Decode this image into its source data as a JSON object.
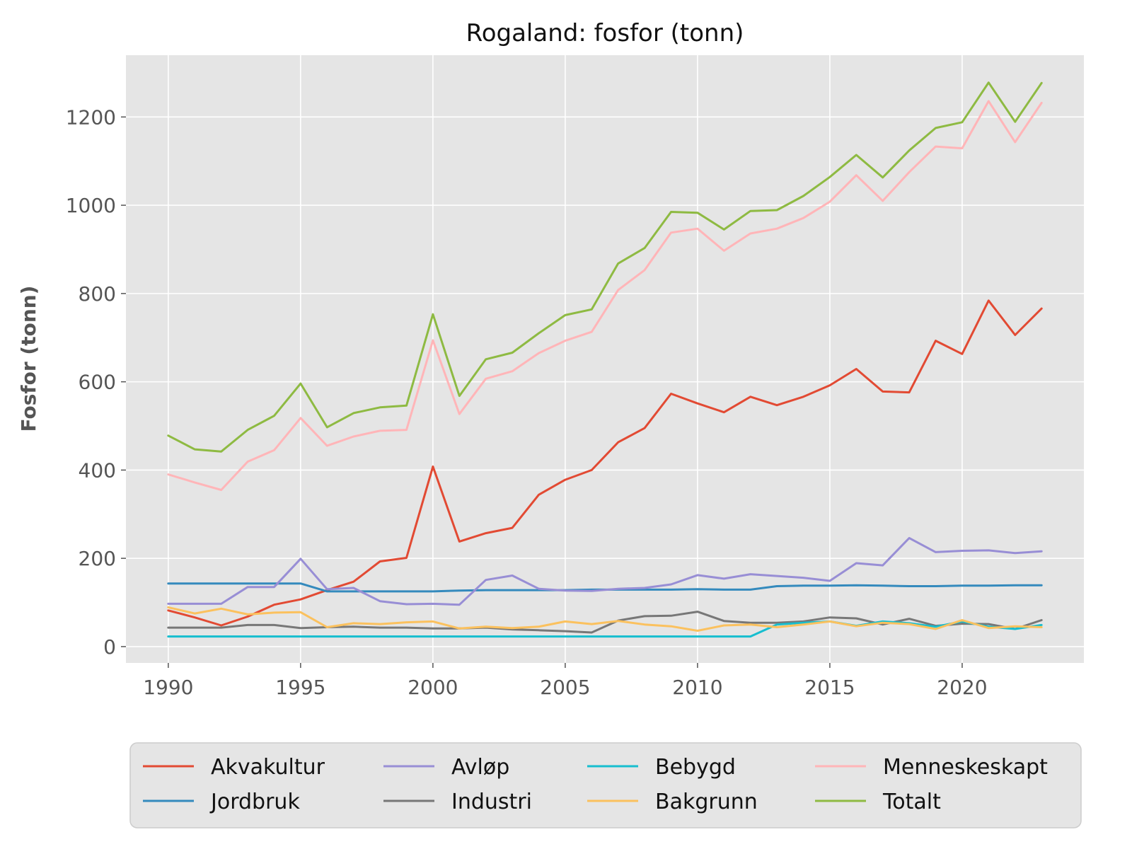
{
  "chart_data": {
    "type": "line",
    "title": "Rogaland: fosfor (tonn)",
    "xlabel": "",
    "ylabel": "Fosfor (tonn)",
    "xlim": [
      1988.4,
      2024.6
    ],
    "ylim": [
      -37,
      1340
    ],
    "xticks": [
      1990,
      1995,
      2000,
      2005,
      2010,
      2015,
      2020
    ],
    "yticks": [
      0,
      200,
      400,
      600,
      800,
      1000,
      1200
    ],
    "grid": true,
    "legend_position": "bottom-center",
    "x": [
      1990,
      1991,
      1992,
      1993,
      1994,
      1995,
      1996,
      1997,
      1998,
      1999,
      2000,
      2001,
      2002,
      2003,
      2004,
      2005,
      2006,
      2007,
      2008,
      2009,
      2010,
      2011,
      2012,
      2013,
      2014,
      2015,
      2016,
      2017,
      2018,
      2019,
      2020,
      2021,
      2022,
      2023
    ],
    "series": [
      {
        "name": "Akvakultur",
        "color": "#e24a33",
        "values": [
          82,
          66,
          48,
          68,
          95,
          107,
          128,
          147,
          193,
          201,
          408,
          238,
          257,
          269,
          344,
          378,
          400,
          463,
          495,
          573,
          551,
          531,
          566,
          547,
          566,
          592,
          629,
          578,
          576,
          693,
          663,
          784,
          706,
          766
        ]
      },
      {
        "name": "Jordbruk",
        "color": "#348abd",
        "values": [
          143,
          143,
          143,
          143,
          143,
          143,
          125,
          125,
          125,
          125,
          125,
          127,
          128,
          128,
          128,
          128,
          129,
          129,
          129,
          129,
          130,
          129,
          129,
          137,
          138,
          138,
          139,
          138,
          137,
          137,
          138,
          138,
          139,
          139
        ]
      },
      {
        "name": "Avløp",
        "color": "#988ed5",
        "values": [
          97,
          97,
          97,
          135,
          135,
          199,
          130,
          133,
          103,
          96,
          97,
          95,
          151,
          161,
          131,
          127,
          126,
          131,
          133,
          141,
          162,
          154,
          164,
          160,
          156,
          149,
          189,
          184,
          246,
          214,
          217,
          218,
          212,
          216
        ]
      },
      {
        "name": "Industri",
        "color": "#777777",
        "values": [
          43,
          43,
          43,
          49,
          49,
          42,
          44,
          45,
          43,
          43,
          41,
          41,
          43,
          39,
          37,
          35,
          32,
          59,
          69,
          70,
          79,
          58,
          54,
          54,
          57,
          66,
          64,
          50,
          63,
          47,
          52,
          51,
          40,
          60
        ]
      },
      {
        "name": "Bebygd",
        "color": "#17becf",
        "values": [
          23,
          23,
          23,
          23,
          23,
          23,
          23,
          23,
          23,
          23,
          23,
          23,
          23,
          23,
          23,
          23,
          23,
          23,
          23,
          23,
          23,
          23,
          23,
          50,
          54,
          57,
          47,
          57,
          53,
          45,
          57,
          45,
          40,
          49
        ]
      },
      {
        "name": "Bakgrunn",
        "color": "#fbc15e",
        "values": [
          89,
          75,
          86,
          73,
          77,
          78,
          44,
          53,
          51,
          55,
          57,
          41,
          45,
          42,
          45,
          57,
          51,
          58,
          50,
          46,
          36,
          48,
          50,
          44,
          50,
          57,
          46,
          54,
          51,
          40,
          60,
          42,
          46,
          44
        ]
      },
      {
        "name": "Menneskeskapt",
        "color": "#ffb5b8",
        "values": [
          390,
          372,
          355,
          419,
          445,
          518,
          455,
          476,
          489,
          491,
          694,
          527,
          607,
          624,
          665,
          693,
          713,
          808,
          853,
          938,
          947,
          897,
          936,
          947,
          971,
          1008,
          1068,
          1010,
          1075,
          1133,
          1129,
          1236,
          1143,
          1232
        ]
      },
      {
        "name": "Totalt",
        "color": "#8eba42",
        "values": [
          478,
          447,
          442,
          491,
          523,
          596,
          497,
          529,
          542,
          546,
          753,
          568,
          651,
          666,
          710,
          751,
          764,
          868,
          903,
          985,
          983,
          945,
          987,
          989,
          1021,
          1064,
          1114,
          1063,
          1124,
          1175,
          1188,
          1278,
          1189,
          1277
        ]
      }
    ]
  }
}
